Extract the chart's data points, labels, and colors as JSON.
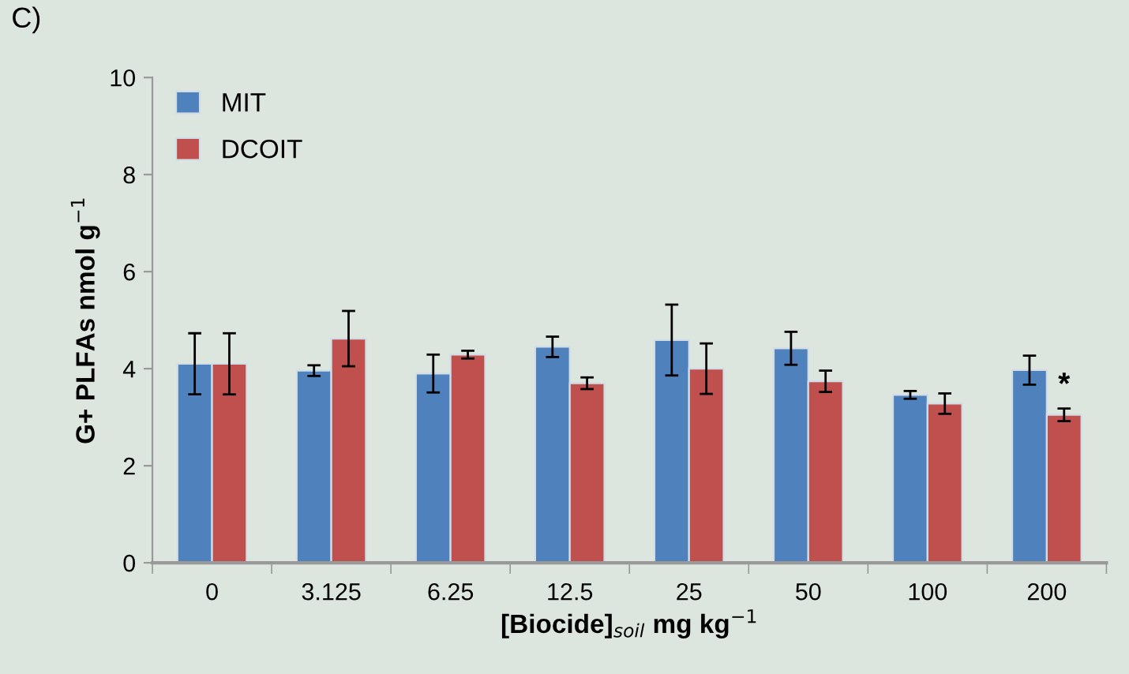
{
  "chart_data": {
    "type": "bar",
    "xlabel": "[Biocide]$_{soil}$ mg kg$^{−1}$",
    "ylabel": "G+ PLFAs nmol g$^{−1}$",
    "categories": [
      "0",
      "3.125",
      "6.25",
      "12.5",
      "25",
      "50",
      "100",
      "200"
    ],
    "series": [
      {
        "name": "MIT",
        "color": "#4f81bd",
        "values": [
          4.1,
          3.96,
          3.9,
          4.45,
          4.59,
          4.42,
          3.46,
          3.97
        ],
        "errors": [
          0.63,
          0.11,
          0.39,
          0.21,
          0.73,
          0.34,
          0.08,
          0.3
        ]
      },
      {
        "name": "DCOIT",
        "color": "#c0504d",
        "values": [
          4.1,
          4.62,
          4.29,
          3.7,
          4.0,
          3.74,
          3.28,
          3.05
        ],
        "errors": [
          0.63,
          0.57,
          0.08,
          0.12,
          0.52,
          0.22,
          0.21,
          0.13
        ]
      }
    ],
    "ylim": [
      0,
      10
    ],
    "yticks": [
      0,
      2,
      4,
      6,
      8,
      10
    ],
    "grid": false,
    "legend": "top left",
    "annotations": [
      "C)",
      {
        "text": "*",
        "x": "200",
        "y": 3.35
      }
    ]
  }
}
